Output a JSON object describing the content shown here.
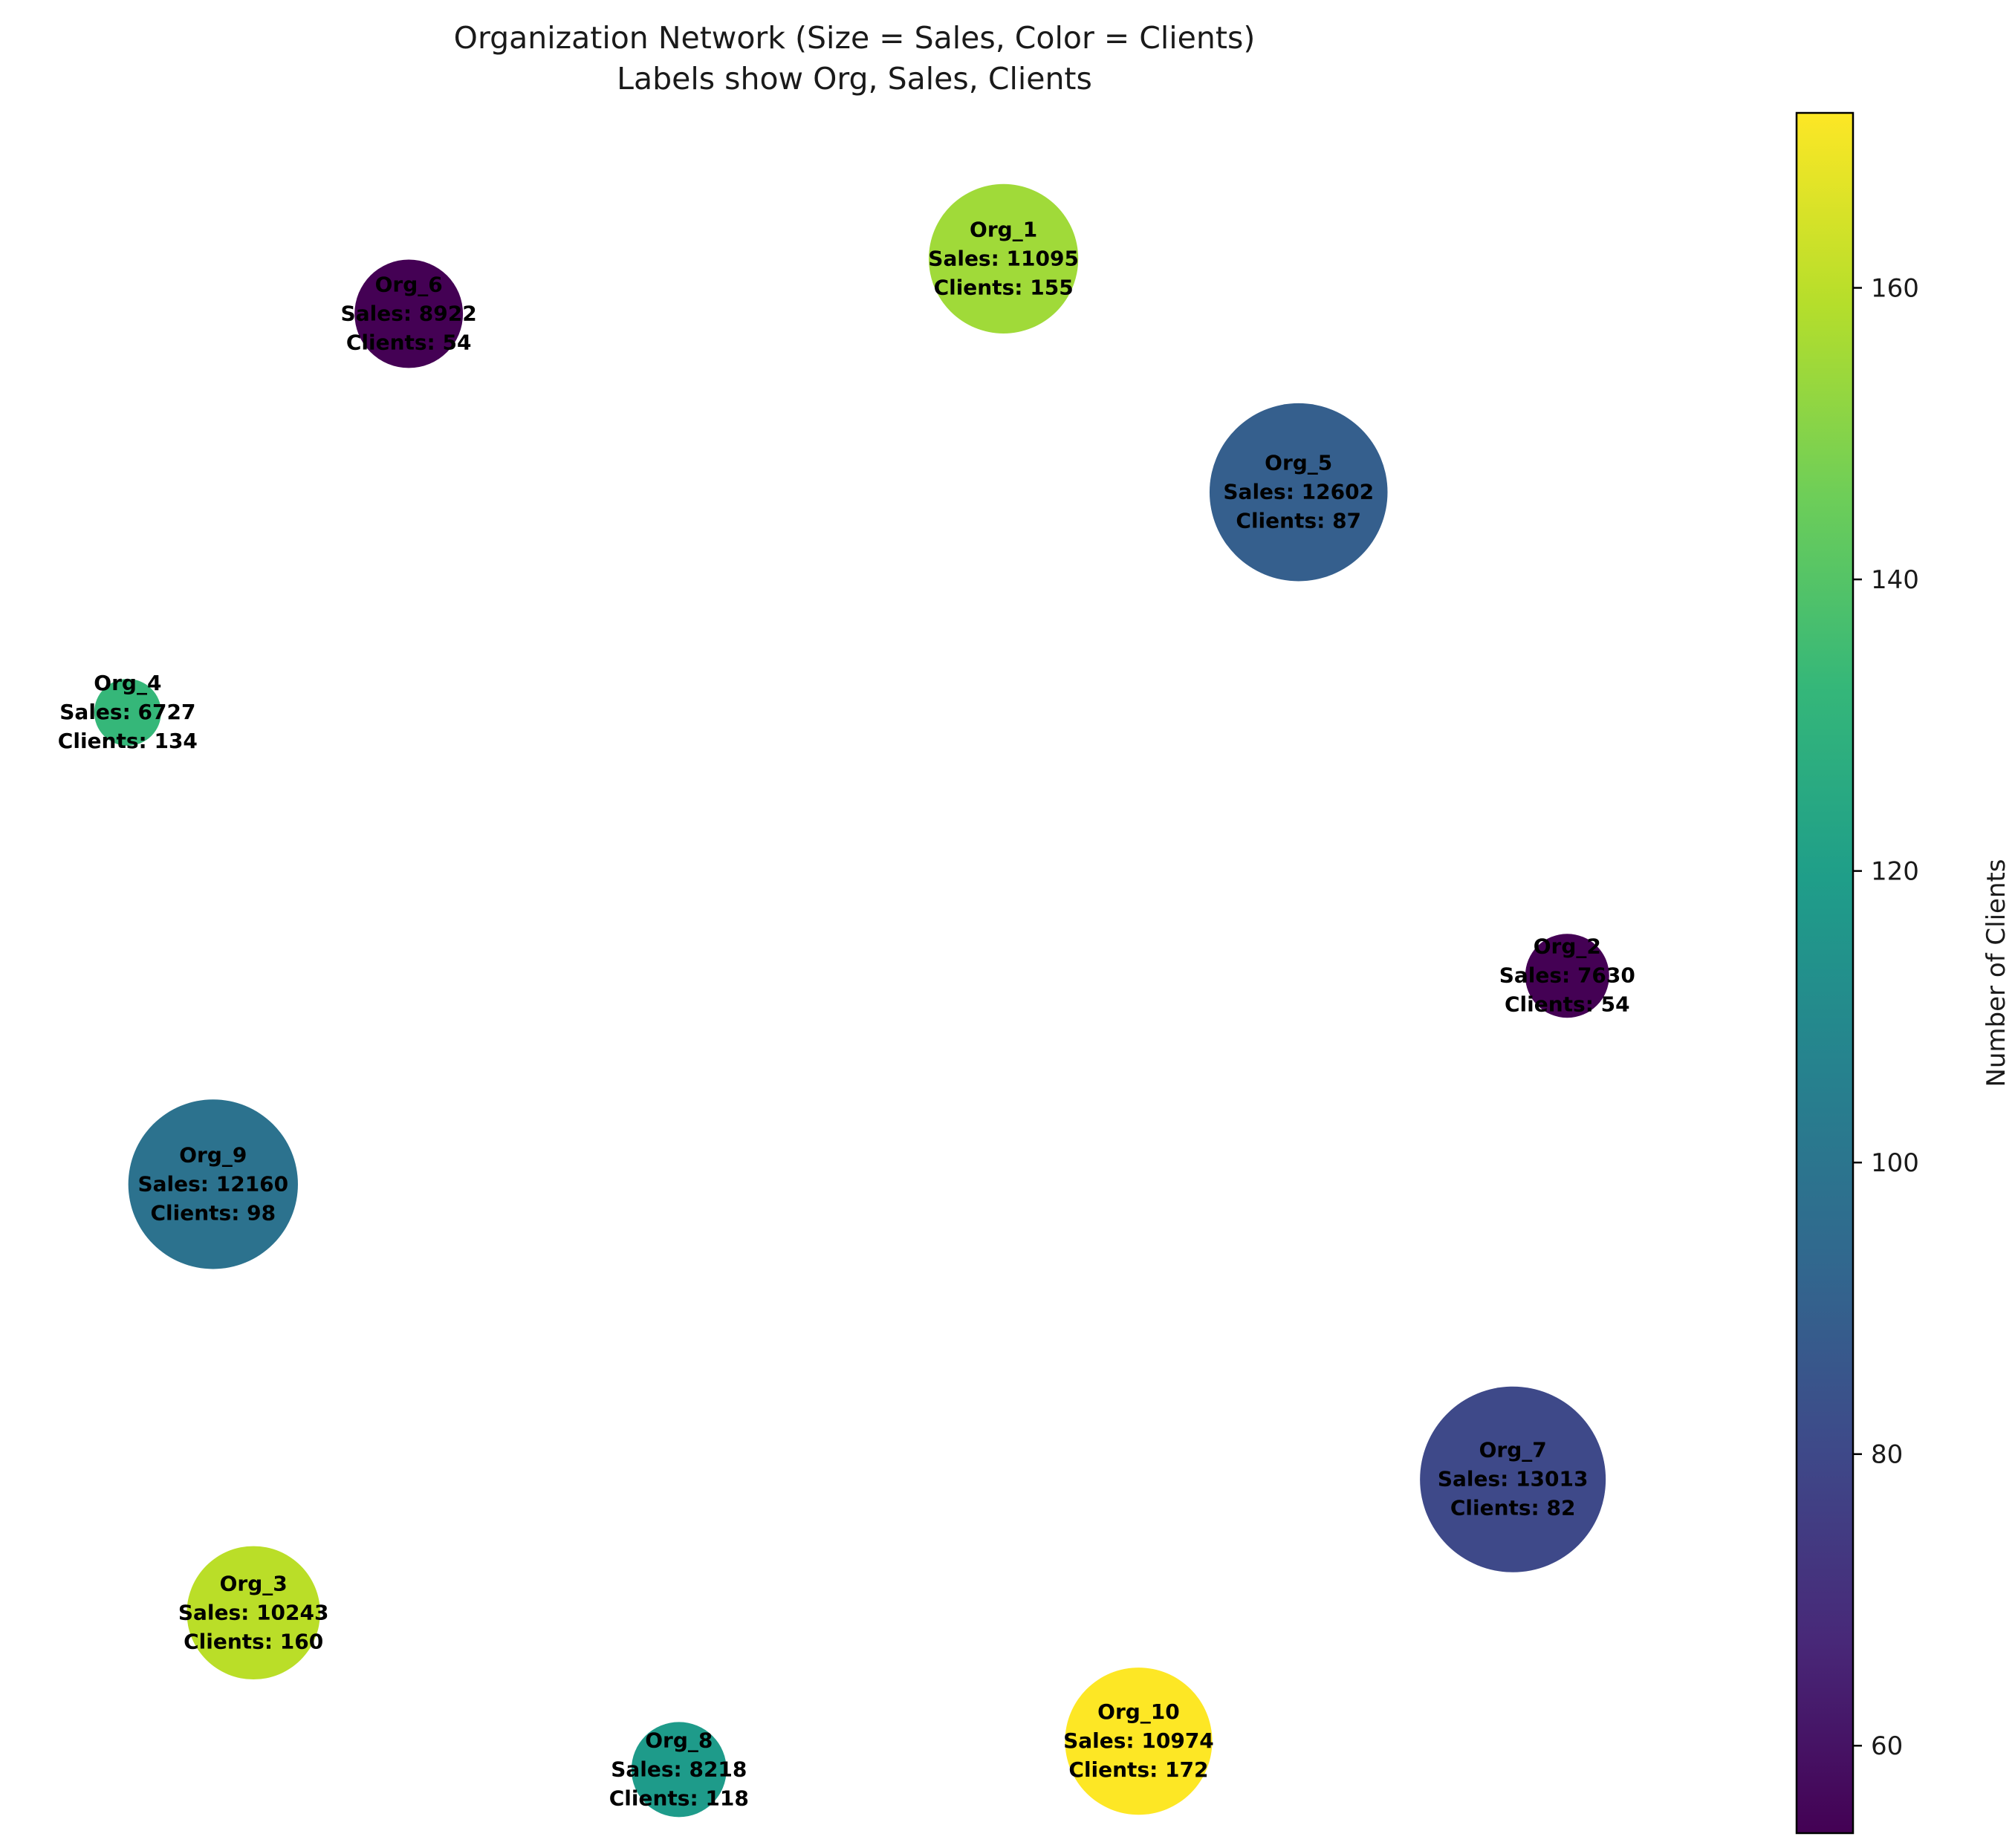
{
  "chart_data": {
    "type": "scatter",
    "title": "Organization Network (Size = Sales, Color = Clients)",
    "subtitle": "Labels show Org, Sales, Clients",
    "grid": false,
    "axes_visible": false,
    "nodes": [
      {
        "name": "Org_1",
        "sales": 11095,
        "clients": 155,
        "x": 0.607,
        "y": 0.925,
        "color": "#a0da39",
        "label_sales": "Sales: 11095",
        "label_clients": "Clients: 155"
      },
      {
        "name": "Org_2",
        "sales": 7630,
        "clients": 54,
        "x": 0.97,
        "y": 0.495,
        "color": "#440154",
        "label_sales": "Sales: 7630",
        "label_clients": "Clients: 54"
      },
      {
        "name": "Org_3",
        "sales": 10243,
        "clients": 160,
        "x": 0.124,
        "y": 0.113,
        "color": "#bade28",
        "label_sales": "Sales: 10243",
        "label_clients": "Clients: 160"
      },
      {
        "name": "Org_4",
        "sales": 6727,
        "clients": 134,
        "x": 0.043,
        "y": 0.653,
        "color": "#35b779",
        "label_sales": "Sales: 6727",
        "label_clients": "Clients: 134"
      },
      {
        "name": "Org_5",
        "sales": 12602,
        "clients": 87,
        "x": 0.797,
        "y": 0.785,
        "color": "#355f8d",
        "label_sales": "Sales: 12602",
        "label_clients": "Clients: 87"
      },
      {
        "name": "Org_6",
        "sales": 8922,
        "clients": 54,
        "x": 0.224,
        "y": 0.892,
        "color": "#440154",
        "label_sales": "Sales: 8922",
        "label_clients": "Clients: 54"
      },
      {
        "name": "Org_7",
        "sales": 13013,
        "clients": 82,
        "x": 0.935,
        "y": 0.193,
        "color": "#3e4989",
        "label_sales": "Sales: 13013",
        "label_clients": "Clients: 82"
      },
      {
        "name": "Org_8",
        "sales": 8218,
        "clients": 118,
        "x": 0.398,
        "y": 0.019,
        "color": "#1e9b8a",
        "label_sales": "Sales: 8218",
        "label_clients": "Clients: 118"
      },
      {
        "name": "Org_9",
        "sales": 12160,
        "clients": 98,
        "x": 0.098,
        "y": 0.37,
        "color": "#2c728e",
        "label_sales": "Sales: 12160",
        "label_clients": "Clients: 98"
      },
      {
        "name": "Org_10",
        "sales": 10974,
        "clients": 172,
        "x": 0.694,
        "y": 0.036,
        "color": "#fde725",
        "label_sales": "Sales: 10974",
        "label_clients": "Clients: 172"
      }
    ],
    "colorbar": {
      "label": "Number of Clients",
      "min": 54,
      "max": 172,
      "ticks": [
        60,
        80,
        100,
        120,
        140,
        160
      ],
      "colormap": [
        "#440154",
        "#482878",
        "#3e4989",
        "#31688e",
        "#26828e",
        "#1f9e89",
        "#35b779",
        "#6ece58",
        "#b5de2b",
        "#fde725"
      ]
    }
  }
}
